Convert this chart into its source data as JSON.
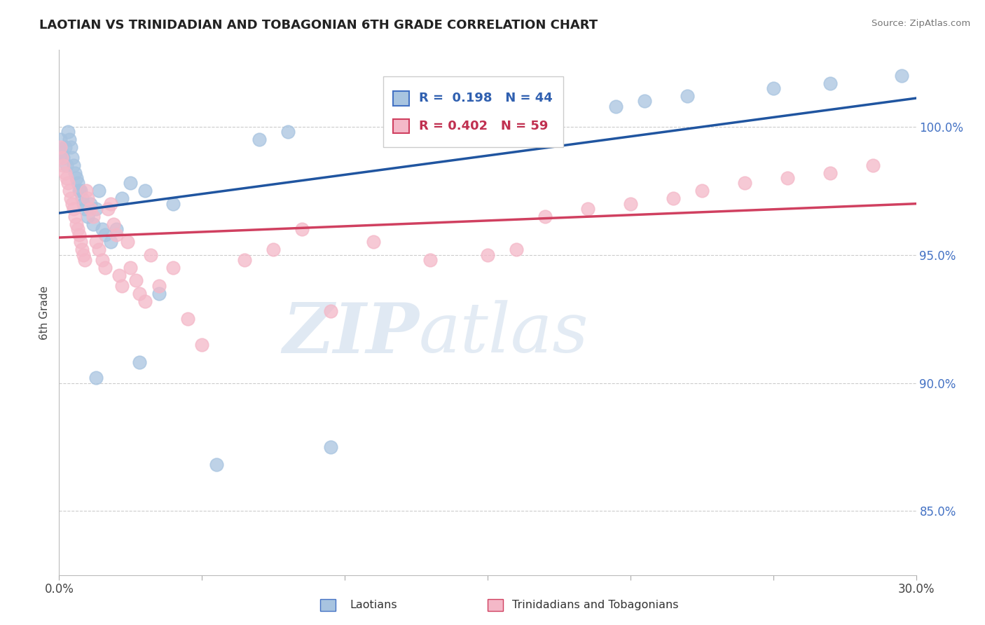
{
  "title": "LAOTIAN VS TRINIDADIAN AND TOBAGONIAN 6TH GRADE CORRELATION CHART",
  "source": "Source: ZipAtlas.com",
  "ylabel_label": "6th Grade",
  "ylabel_ticks": [
    85.0,
    90.0,
    95.0,
    100.0
  ],
  "xmin": 0.0,
  "xmax": 30.0,
  "ymin": 82.5,
  "ymax": 103.0,
  "blue_color": "#a8c4e0",
  "pink_color": "#f4b8c8",
  "blue_line_color": "#2055a0",
  "pink_line_color": "#d04060",
  "legend_blue_R": "0.198",
  "legend_blue_N": "44",
  "legend_pink_R": "0.402",
  "legend_pink_N": "59",
  "watermark_zip": "ZIP",
  "watermark_atlas": "atlas",
  "blue_scatter_x": [
    0.05,
    0.1,
    0.15,
    0.2,
    0.25,
    0.3,
    0.35,
    0.4,
    0.45,
    0.5,
    0.55,
    0.6,
    0.65,
    0.7,
    0.75,
    0.8,
    0.85,
    0.9,
    1.0,
    1.1,
    1.2,
    1.3,
    1.4,
    1.5,
    1.6,
    1.8,
    2.0,
    2.2,
    2.5,
    3.0,
    3.5,
    4.0,
    1.3,
    2.8,
    5.5,
    7.0,
    8.0,
    9.5,
    19.5,
    20.5,
    22.0,
    25.0,
    27.0,
    29.5
  ],
  "blue_scatter_y": [
    99.5,
    99.0,
    98.8,
    99.2,
    98.5,
    99.8,
    99.5,
    99.2,
    98.8,
    98.5,
    98.2,
    98.0,
    97.8,
    97.5,
    97.5,
    97.2,
    97.0,
    96.8,
    96.5,
    97.0,
    96.2,
    96.8,
    97.5,
    96.0,
    95.8,
    95.5,
    96.0,
    97.2,
    97.8,
    97.5,
    93.5,
    97.0,
    90.2,
    90.8,
    86.8,
    99.5,
    99.8,
    87.5,
    100.8,
    101.0,
    101.2,
    101.5,
    101.7,
    102.0
  ],
  "pink_scatter_x": [
    0.05,
    0.1,
    0.15,
    0.2,
    0.25,
    0.3,
    0.35,
    0.4,
    0.45,
    0.5,
    0.55,
    0.6,
    0.65,
    0.7,
    0.75,
    0.8,
    0.85,
    0.9,
    0.95,
    1.0,
    1.1,
    1.2,
    1.3,
    1.4,
    1.5,
    1.6,
    1.7,
    1.8,
    1.9,
    2.0,
    2.1,
    2.2,
    2.4,
    2.5,
    2.7,
    2.8,
    3.0,
    3.2,
    3.5,
    4.0,
    4.5,
    5.0,
    6.5,
    7.5,
    8.5,
    9.5,
    11.0,
    17.0,
    18.5,
    20.0,
    21.5,
    22.5,
    24.0,
    25.5,
    27.0,
    28.5,
    13.0,
    15.0,
    16.0
  ],
  "pink_scatter_y": [
    99.2,
    98.8,
    98.5,
    98.2,
    98.0,
    97.8,
    97.5,
    97.2,
    97.0,
    96.8,
    96.5,
    96.2,
    96.0,
    95.8,
    95.5,
    95.2,
    95.0,
    94.8,
    97.5,
    97.2,
    96.8,
    96.5,
    95.5,
    95.2,
    94.8,
    94.5,
    96.8,
    97.0,
    96.2,
    95.8,
    94.2,
    93.8,
    95.5,
    94.5,
    94.0,
    93.5,
    93.2,
    95.0,
    93.8,
    94.5,
    92.5,
    91.5,
    94.8,
    95.2,
    96.0,
    92.8,
    95.5,
    96.5,
    96.8,
    97.0,
    97.2,
    97.5,
    97.8,
    98.0,
    98.2,
    98.5,
    94.8,
    95.0,
    95.2
  ]
}
